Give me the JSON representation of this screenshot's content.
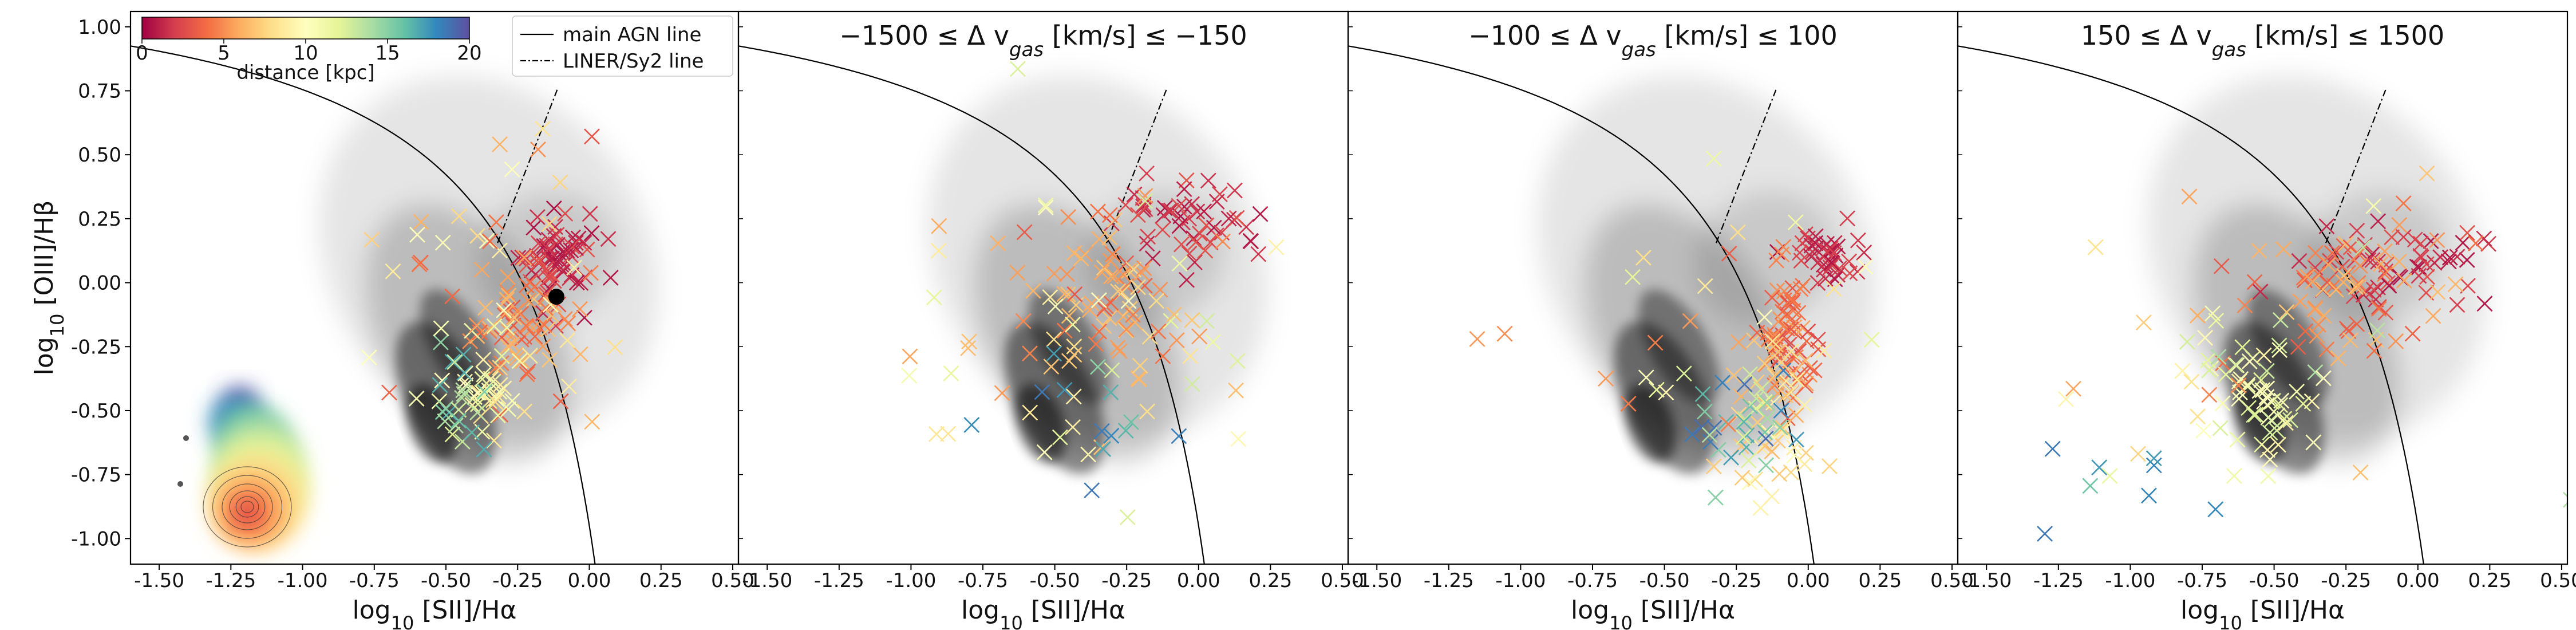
{
  "chart_data": [
    {
      "type": "scatter",
      "panel": "left",
      "title": "",
      "xlabel_prefix": "log",
      "xlabel_sub": "10",
      "xlabel_rest": " [SII]/Hα",
      "ylabel_prefix": "log",
      "ylabel_sub": "10",
      "ylabel_rest": " [OIII]/Hβ",
      "xlim": [
        -1.6,
        0.52
      ],
      "ylim": [
        -1.1,
        1.06
      ],
      "xticks": [
        "-1.50",
        "-1.25",
        "-1.00",
        "-0.75",
        "-0.50",
        "-0.25",
        "0.00",
        "0.25",
        "0.50"
      ],
      "yticks": [
        "1.00",
        "0.75",
        "0.50",
        "0.25",
        "0.00",
        "-0.25",
        "-0.50",
        "-0.75",
        "-1.00"
      ],
      "legend": {
        "placement": "top-right",
        "entries": [
          "main AGN line",
          "LINER/Sy2 line"
        ]
      },
      "colorbar": {
        "label": "distance [kpc]",
        "ticks": [
          "0",
          "5",
          "10",
          "15",
          "20"
        ],
        "range": [
          0,
          20
        ],
        "cmap": "Spectral"
      },
      "highlight_point": {
        "x": -0.115,
        "y": -0.055
      }
    },
    {
      "type": "scatter",
      "panel": "second",
      "title_parts": [
        "−1500 ≤ Δ v",
        "gas",
        " [km/s]  ≤ −150"
      ],
      "xlabel_prefix": "log",
      "xlabel_sub": "10",
      "xlabel_rest": " [SII]/Hα",
      "xlim": [
        -1.6,
        0.52
      ],
      "ylim": [
        -1.1,
        1.06
      ],
      "xticks": [
        "-1.50",
        "-1.25",
        "-1.00",
        "-0.75",
        "-0.50",
        "-0.25",
        "0.00",
        "0.25",
        "0.50"
      ]
    },
    {
      "type": "scatter",
      "panel": "third",
      "title_parts": [
        "−100 ≤ Δ v",
        "gas",
        " [km/s]  ≤ 100"
      ],
      "xlabel_prefix": "log",
      "xlabel_sub": "10",
      "xlabel_rest": " [SII]/Hα",
      "xlim": [
        -1.6,
        0.52
      ],
      "ylim": [
        -1.1,
        1.06
      ],
      "xticks": [
        "-1.50",
        "-1.25",
        "-1.00",
        "-0.75",
        "-0.50",
        "-0.25",
        "0.00",
        "0.25",
        "0.50"
      ]
    },
    {
      "type": "scatter",
      "panel": "fourth",
      "title_parts": [
        "150 ≤ Δ v",
        "gas",
        " [km/s]  ≤ 1500"
      ],
      "xlabel_prefix": "log",
      "xlabel_sub": "10",
      "xlabel_rest": " [SII]/Hα",
      "xlim": [
        -1.6,
        0.52
      ],
      "ylim": [
        -1.1,
        1.06
      ],
      "xticks": [
        "-1.50",
        "-1.25",
        "-1.00",
        "-0.75",
        "-0.50",
        "-0.25",
        "0.00",
        "0.25",
        "0.50"
      ]
    }
  ]
}
